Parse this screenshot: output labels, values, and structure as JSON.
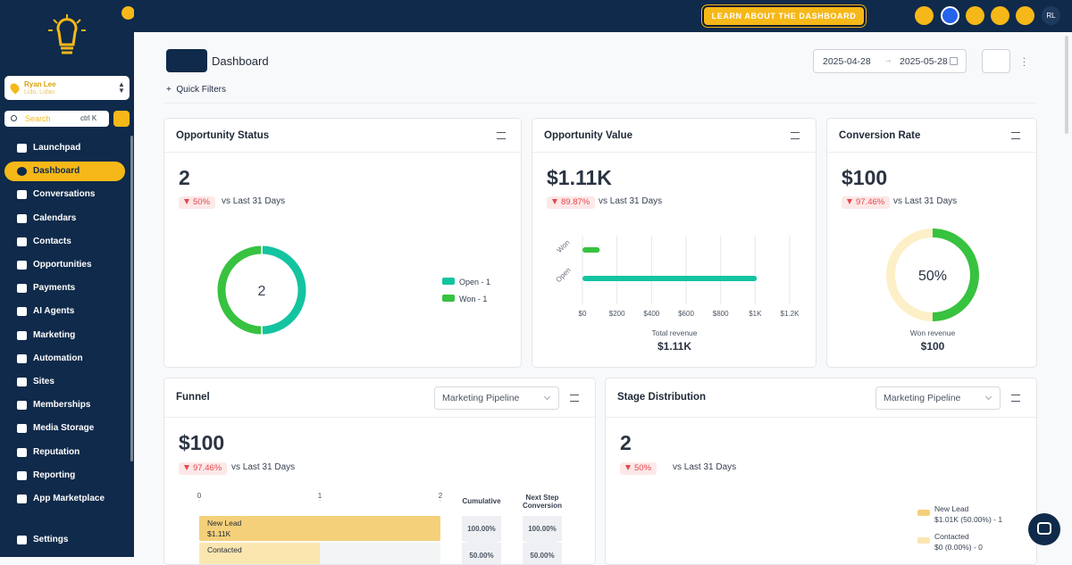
{
  "sidebar": {
    "user_name": "Ryan Lee",
    "user_sub": "Lido, Lidan",
    "search": "Search",
    "shortcut": "ctrl K",
    "nav": [
      "Launchpad",
      "Dashboard",
      "Conversations",
      "Calendars",
      "Contacts",
      "Opportunities",
      "Payments",
      "AI Agents",
      "Marketing",
      "Automation",
      "Sites",
      "Memberships",
      "Media Storage",
      "Reputation",
      "Reporting",
      "App Marketplace"
    ],
    "settings": "Settings"
  },
  "topbar": {
    "banner": "LEARN ABOUT THE DASHBOARD",
    "avatar": "RL"
  },
  "header": {
    "title": "Dashboard",
    "quick_filters": "Quick Filters",
    "date_from": "2025-04-28",
    "date_to": "2025-05-28"
  },
  "cards": {
    "opportunity_status": {
      "title": "Opportunity Status",
      "value": "2",
      "change": "50%",
      "period": "vs Last 31 Days",
      "chart": {
        "type": "donut",
        "center": "2",
        "series": [
          {
            "name": "Open - 1",
            "color": "#14c4a0",
            "value": 1
          },
          {
            "name": "Won - 1",
            "color": "#37c23f",
            "value": 1
          }
        ]
      }
    },
    "opportunity_value": {
      "title": "Opportunity Value",
      "value": "$1.11K",
      "change": "89.87%",
      "period": "vs Last 31 Days",
      "chart": {
        "type": "bar",
        "orientation": "horizontal",
        "categories": [
          "Won",
          "Open"
        ],
        "values": [
          100,
          1010
        ],
        "colors": [
          "#37c23f",
          "#14c4a0"
        ],
        "xlim": [
          0,
          1200
        ],
        "xticks": [
          {
            "value": 0,
            "label": "$0"
          },
          {
            "value": 200,
            "label": "$200"
          },
          {
            "value": 400,
            "label": "$400"
          },
          {
            "value": 600,
            "label": "$600"
          },
          {
            "value": 800,
            "label": "$800"
          },
          {
            "value": 1000,
            "label": "$1K"
          },
          {
            "value": 1200,
            "label": "$1.2K"
          }
        ],
        "grid": true,
        "footer_label": "Total revenue",
        "footer_value": "$1.11K"
      }
    },
    "conversion_rate": {
      "title": "Conversion Rate",
      "value": "$100",
      "change": "97.46%",
      "period": "vs Last 31 Days",
      "chart": {
        "type": "gauge",
        "value": 50,
        "label": "50%",
        "color": "#37c23f",
        "track": "#fdf0c8",
        "footer_label": "Won revenue",
        "footer_value": "$100"
      }
    },
    "funnel": {
      "title": "Funnel",
      "pipeline": "Marketing Pipeline",
      "value": "$100",
      "change": "97.46%",
      "period": "vs Last 31 Days",
      "chart": {
        "type": "funnel",
        "xlim": [
          0,
          2
        ],
        "xticks": [
          0,
          1,
          2
        ],
        "columns": [
          "Cumulative",
          "Next Step Conversion"
        ],
        "stages": [
          {
            "name": "New Lead",
            "amount": "$1.11K",
            "value": 2,
            "color": "#f5d07a",
            "cumulative": "100.00%",
            "next": "100.00%"
          },
          {
            "name": "Contacted",
            "value": 1,
            "color": "#fbe6b0",
            "cumulative": "50.00%",
            "next": "50.00%"
          }
        ]
      }
    },
    "stage_distribution": {
      "title": "Stage Distribution",
      "pipeline": "Marketing Pipeline",
      "value": "2",
      "change": "50%",
      "period": "vs Last 31 Days",
      "legend": [
        {
          "name": "New Lead",
          "detail": "$1.01K (50.00%) - 1",
          "color": "#f5d07a"
        },
        {
          "name": "Contacted",
          "detail": "$0 (0.00%) - 0",
          "color": "#fbe6b0"
        }
      ]
    }
  }
}
